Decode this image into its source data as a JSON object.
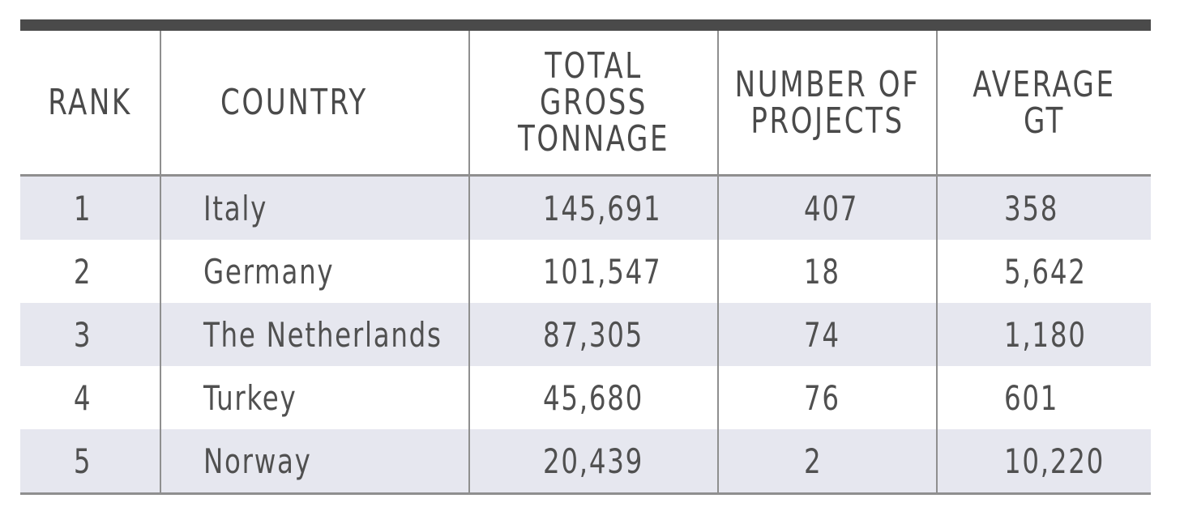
{
  "table": {
    "headers": [
      {
        "line1": "RANK",
        "line2": ""
      },
      {
        "line1": "COUNTRY",
        "line2": ""
      },
      {
        "line1": "TOTAL GROSS",
        "line2": "TONNAGE"
      },
      {
        "line1": "NUMBER OF",
        "line2": "PROJECTS"
      },
      {
        "line1": "AVERAGE",
        "line2": "GT"
      }
    ],
    "rows": [
      {
        "rank": "1",
        "country": "Italy",
        "total_gross_tonnage": "145,691",
        "number_of_projects": "407",
        "average_gt": "358"
      },
      {
        "rank": "2",
        "country": "Germany",
        "total_gross_tonnage": "101,547",
        "number_of_projects": "18",
        "average_gt": "5,642"
      },
      {
        "rank": "3",
        "country": "The Netherlands",
        "total_gross_tonnage": "87,305",
        "number_of_projects": "74",
        "average_gt": "1,180"
      },
      {
        "rank": "4",
        "country": "Turkey",
        "total_gross_tonnage": "45,680",
        "number_of_projects": "76",
        "average_gt": "601"
      },
      {
        "rank": "5",
        "country": "Norway",
        "total_gross_tonnage": "20,439",
        "number_of_projects": "2",
        "average_gt": "10,220"
      }
    ]
  },
  "colors": {
    "top_rule": "#4a4a4a",
    "row_shade": "#e6e7ef",
    "grid_line": "#8f8f8f",
    "text": "#4b4b4b"
  }
}
